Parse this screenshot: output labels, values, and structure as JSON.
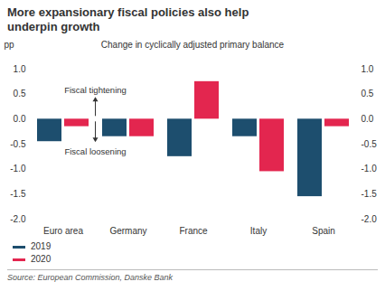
{
  "chart_data": {
    "type": "bar",
    "title": "More expansionary fiscal policies also help underpin growth",
    "subtitle": "Change in cyclically adjusted primary balance",
    "y_label": "pp",
    "categories": [
      "Euro area",
      "Germany",
      "France",
      "Italy",
      "Spain"
    ],
    "series": [
      {
        "name": "2019",
        "color": "#1d4e6e",
        "values": [
          -0.45,
          -0.35,
          -0.75,
          -0.35,
          -1.55
        ]
      },
      {
        "name": "2020",
        "color": "#e3264f",
        "values": [
          -0.15,
          -0.35,
          0.75,
          -1.05,
          -0.15
        ]
      }
    ],
    "ylim": [
      -2,
      1
    ],
    "yticks": [
      {
        "value": -2,
        "label": "-2.0"
      },
      {
        "value": -1.5,
        "label": "-1.5"
      },
      {
        "value": -1,
        "label": "-1.0"
      },
      {
        "value": -0.5,
        "label": "-0.5"
      },
      {
        "value": 0,
        "label": "0.0"
      },
      {
        "value": 0.5,
        "label": "0.5"
      },
      {
        "value": 1,
        "label": "1.0"
      }
    ],
    "annotations": [
      {
        "text": "Fiscal tightening"
      },
      {
        "text": "Fiscal loosening"
      }
    ],
    "source": "Source: European Commission, Danske Bank",
    "legend": "bottom-left",
    "grid": false
  }
}
